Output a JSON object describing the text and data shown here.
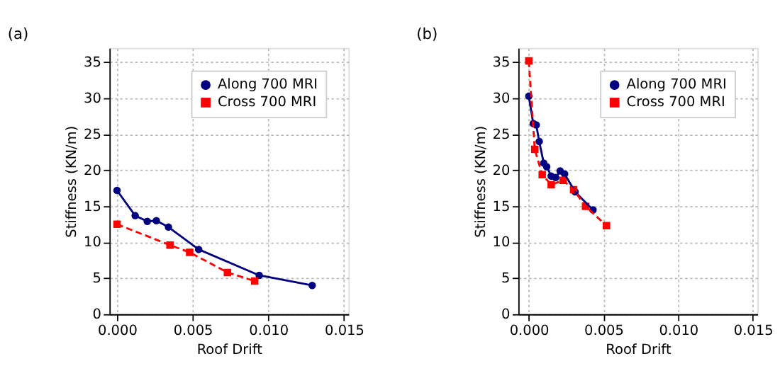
{
  "chart_data": [
    {
      "type": "line",
      "title": "(a)",
      "xlabel": "Roof Drift",
      "ylabel": "Stiffness (KN/m)",
      "xlim": [
        -0.0005,
        0.0153
      ],
      "ylim": [
        0,
        37
      ],
      "xticks": [
        {
          "value": 0,
          "label": "0.000"
        },
        {
          "value": 0.005,
          "label": "0.005"
        },
        {
          "value": 0.01,
          "label": "0.010"
        },
        {
          "value": 0.015,
          "label": "0.015"
        }
      ],
      "yticks": [
        0,
        5,
        10,
        15,
        20,
        25,
        30,
        35
      ],
      "grid": true,
      "legend": "top right",
      "series": [
        {
          "name": "Along 700 MRI",
          "color": "#000080",
          "marker": "circle",
          "line_style": "solid",
          "x": [
            0,
            0.0012,
            0.002,
            0.0026,
            0.0034,
            0.0054,
            0.0094,
            0.0129
          ],
          "values": [
            17.2,
            13.7,
            12.9,
            13.0,
            12.1,
            9.0,
            5.4,
            4.0
          ]
        },
        {
          "name": "Cross 700 MRI",
          "color": "#ff0000",
          "marker": "square",
          "line_style": "dashed",
          "x": [
            0,
            0.0035,
            0.0048,
            0.0073,
            0.0091
          ],
          "values": [
            12.5,
            9.6,
            8.6,
            5.8,
            4.6
          ]
        }
      ]
    },
    {
      "type": "line",
      "title": "(b)",
      "xlabel": "Roof Drift",
      "ylabel": "Stiffness (KN/m)",
      "xlim": [
        -0.0007,
        0.0153
      ],
      "ylim": [
        0,
        37
      ],
      "xticks": [
        {
          "value": 0,
          "label": "0.000"
        },
        {
          "value": 0.005,
          "label": "0.005"
        },
        {
          "value": 0.01,
          "label": "0.010"
        },
        {
          "value": 0.015,
          "label": "0.015"
        }
      ],
      "yticks": [
        0,
        5,
        10,
        15,
        20,
        25,
        30,
        35
      ],
      "grid": true,
      "legend": "top right",
      "series": [
        {
          "name": "Along 700 MRI",
          "color": "#000080",
          "marker": "circle",
          "line_style": "solid",
          "x": [
            0,
            0.0003,
            0.0005,
            0.0007,
            0.001,
            0.0012,
            0.0015,
            0.0018,
            0.0021,
            0.0024,
            0.0031,
            0.0043
          ],
          "values": [
            30.3,
            26.5,
            26.3,
            24.0,
            21.0,
            20.5,
            19.2,
            19.0,
            19.9,
            19.5,
            17.0,
            14.5
          ]
        },
        {
          "name": "Cross 700 MRI",
          "color": "#ff0000",
          "marker": "square",
          "line_style": "dashed",
          "x": [
            0,
            0.0004,
            0.0009,
            0.0015,
            0.0023,
            0.003,
            0.0038,
            0.0052
          ],
          "values": [
            35.2,
            22.9,
            19.4,
            18.0,
            18.6,
            17.3,
            15.0,
            12.3
          ]
        }
      ]
    }
  ]
}
